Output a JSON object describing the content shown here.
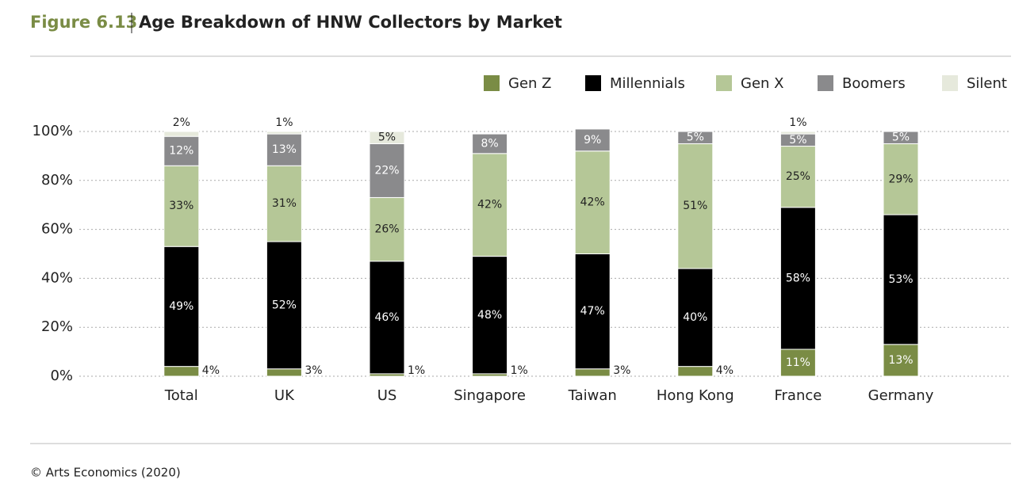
{
  "chart_data": {
    "type": "stacked_bar",
    "figure_label": "Figure 6.13",
    "title": "Age Breakdown of HNW Collectors by Market",
    "source": "© Arts Economics (2020)",
    "categories": [
      "Total",
      "UK",
      "US",
      "Singapore",
      "Taiwan",
      "Hong Kong",
      "France",
      "Germany"
    ],
    "series": [
      {
        "name": "Gen Z",
        "color": "#7a8c45",
        "values": [
          4,
          3,
          1,
          1,
          3,
          4,
          11,
          13
        ],
        "value_labels": [
          "4%",
          "3%",
          "1%",
          "1%",
          "3%",
          "4%",
          "11%",
          "13%"
        ]
      },
      {
        "name": "Millennials",
        "color": "#000000",
        "values": [
          49,
          52,
          46,
          48,
          47,
          40,
          58,
          53
        ],
        "value_labels": [
          "49%",
          "52%",
          "46%",
          "48%",
          "47%",
          "40%",
          "58%",
          "53%"
        ]
      },
      {
        "name": "Gen X",
        "color": "#b5c797",
        "values": [
          33,
          31,
          26,
          42,
          42,
          51,
          25,
          29
        ],
        "value_labels": [
          "33%",
          "31%",
          "26%",
          "42%",
          "42%",
          "51%",
          "25%",
          "29%"
        ]
      },
      {
        "name": "Boomers",
        "color": "#8a8a8c",
        "values": [
          12,
          13,
          22,
          8,
          9,
          5,
          5,
          5
        ],
        "value_labels": [
          "12%",
          "13%",
          "22%",
          "8%",
          "9%",
          "5%",
          "5%",
          "5%"
        ]
      },
      {
        "name": "Silent",
        "color": "#e6e9dc",
        "values": [
          2,
          1,
          5,
          null,
          null,
          null,
          1,
          null
        ],
        "value_labels": [
          "2%",
          "1%",
          "5%",
          null,
          null,
          null,
          "1%",
          null
        ]
      }
    ],
    "ylim": [
      0,
      100
    ],
    "yticks": [
      {
        "value": 0,
        "label": "0%"
      },
      {
        "value": 20,
        "label": "20%"
      },
      {
        "value": 40,
        "label": "40%"
      },
      {
        "value": 60,
        "label": "60%"
      },
      {
        "value": 80,
        "label": "80%"
      },
      {
        "value": 100,
        "label": "100%"
      }
    ],
    "grid": true,
    "legend": "top-right"
  }
}
